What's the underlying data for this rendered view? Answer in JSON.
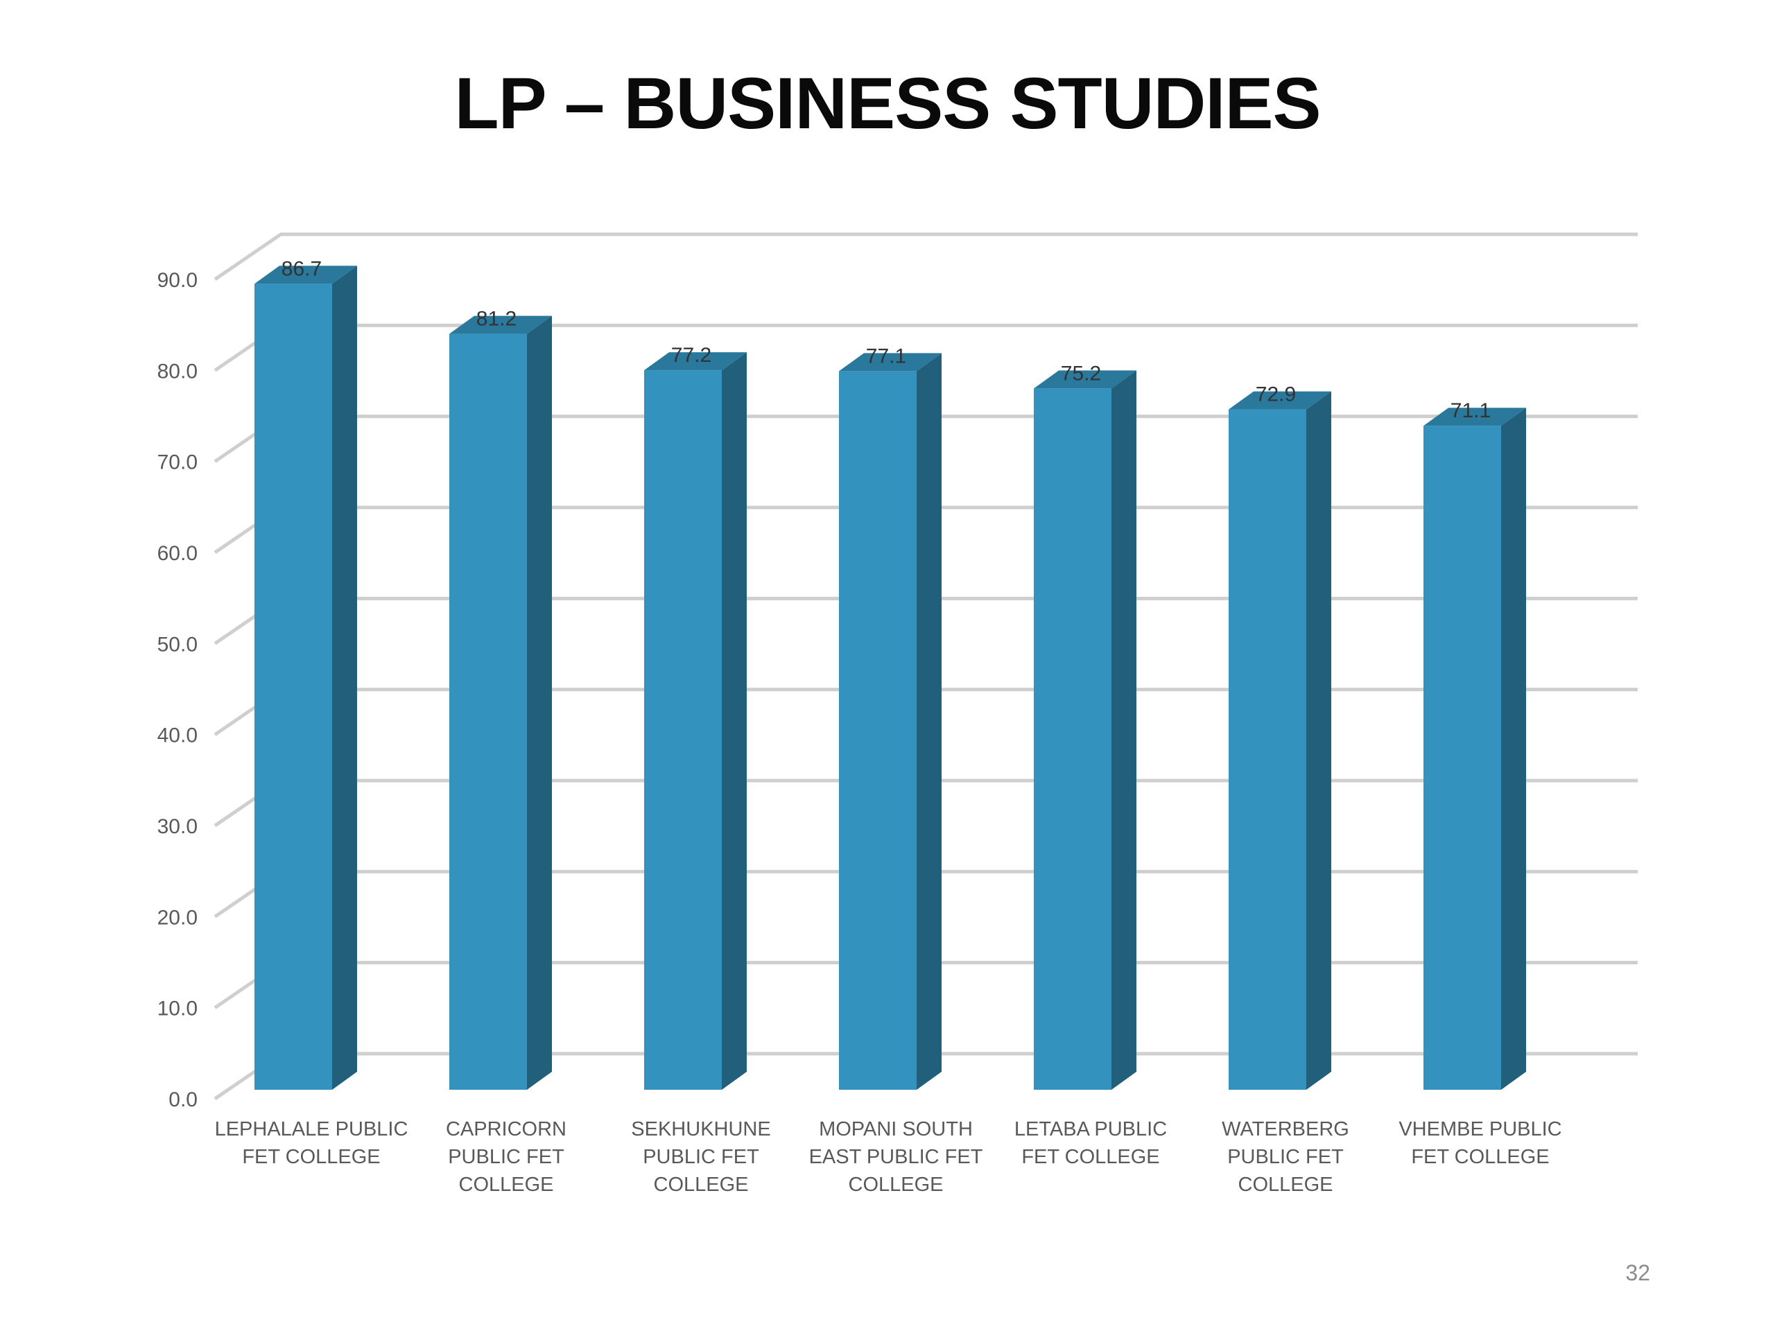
{
  "slide": {
    "title": "LP – BUSINESS STUDIES",
    "page_number": "32"
  },
  "colors": {
    "bar_front": "#3493be",
    "bar_side": "#225f7b",
    "bar_top": "#2a789b",
    "gridline": "#cfcfcf",
    "axis_text": "#595959",
    "data_label": "#333333"
  },
  "chart_data": {
    "type": "bar",
    "style": "3d-clustered-column",
    "title": "",
    "xlabel": "",
    "ylabel": "",
    "ylim": [
      0,
      90
    ],
    "y_ticks": [
      "0.0",
      "10.0",
      "20.0",
      "30.0",
      "40.0",
      "50.0",
      "60.0",
      "70.0",
      "80.0",
      "90.0"
    ],
    "grid": true,
    "legend": "none",
    "categories": [
      [
        "LEPHALALE PUBLIC",
        "FET COLLEGE"
      ],
      [
        "CAPRICORN",
        "PUBLIC FET",
        "COLLEGE"
      ],
      [
        "SEKHUKHUNE",
        "PUBLIC FET",
        "COLLEGE"
      ],
      [
        "MOPANI SOUTH",
        "EAST PUBLIC FET",
        "COLLEGE"
      ],
      [
        "LETABA PUBLIC",
        "FET COLLEGE"
      ],
      [
        "WATERBERG",
        "PUBLIC FET",
        "COLLEGE"
      ],
      [
        "VHEMBE PUBLIC",
        "FET COLLEGE"
      ]
    ],
    "values": [
      86.7,
      81.2,
      77.2,
      77.1,
      75.2,
      72.9,
      71.1
    ],
    "data_labels": [
      "86.7",
      "81.2",
      "77.2",
      "77.1",
      "75.2",
      "72.9",
      "71.1"
    ]
  }
}
